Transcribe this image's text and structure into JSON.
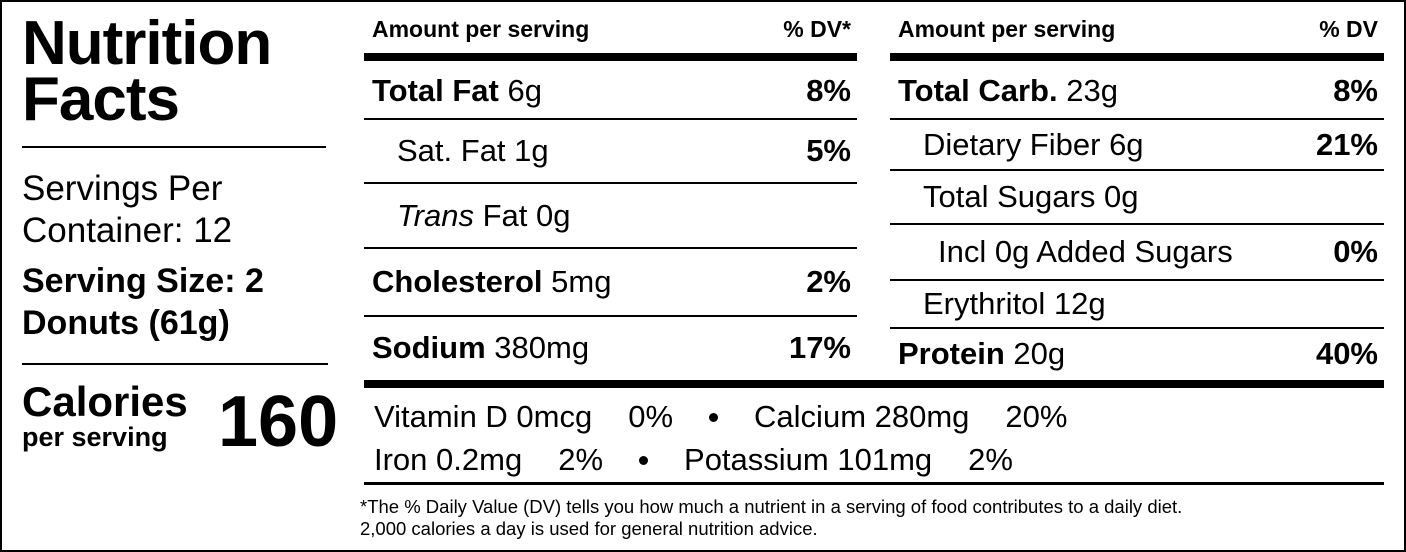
{
  "title": "Nutrition Facts",
  "servings": "Servings Per Container: 12",
  "serving_size": "Serving Size: 2 Donuts (61g)",
  "calories": {
    "label": "Calories",
    "sub": "per serving",
    "value": "160"
  },
  "left_table": {
    "header": {
      "amount": "Amount per serving",
      "dv": "% DV*"
    },
    "rows": [
      {
        "name": "Total Fat",
        "amount": "6g",
        "dv": "8%"
      },
      {
        "name": "Sat. Fat",
        "amount": "1g",
        "dv": "5%"
      },
      {
        "name_italic": "Trans",
        "name": "Fat",
        "amount": "0g"
      },
      {
        "name": "Cholesterol",
        "amount": "5mg",
        "dv": "2%"
      },
      {
        "name": "Sodium",
        "amount": "380mg",
        "dv": "17%"
      }
    ]
  },
  "right_table": {
    "header": {
      "amount": "Amount per serving",
      "dv": "% DV"
    },
    "rows": [
      {
        "name": "Total Carb.",
        "amount": "23g",
        "dv": "8%"
      },
      {
        "name": "Dietary Fiber",
        "amount": "6g",
        "dv": "21%"
      },
      {
        "name": "Total Sugars",
        "amount": "0g"
      },
      {
        "name": "Incl 0g Added Sugars",
        "dv": "0%"
      },
      {
        "name": "Erythritol",
        "amount": "12g"
      },
      {
        "name": "Protein",
        "amount": "20g",
        "dv": "40%"
      }
    ]
  },
  "vitamins": [
    [
      {
        "name": "Vitamin D 0mcg",
        "dv": "0%"
      },
      {
        "name": "Calcium 280mg",
        "dv": "20%"
      }
    ],
    [
      {
        "name": "Iron 0.2mg",
        "dv": "2%"
      },
      {
        "name": "Potassium 101mg",
        "dv": "2%"
      }
    ]
  ],
  "footnote": [
    "*The % Daily Value (DV) tells you how much a nutrient in a serving of food contributes to a daily diet.",
    "2,000 calories a day is used for general nutrition advice."
  ]
}
